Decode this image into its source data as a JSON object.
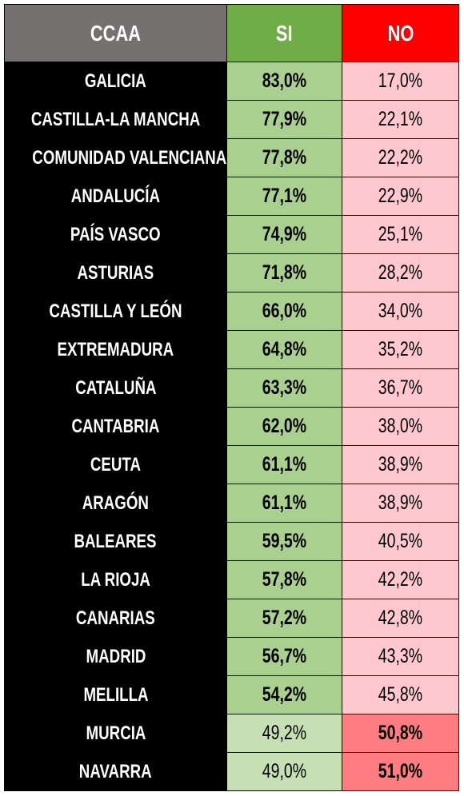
{
  "table": {
    "header": [
      "CCAA",
      "SI",
      "NO"
    ],
    "rows": [
      [
        "GALICIA",
        "83,0%",
        "17,0%"
      ],
      [
        "CASTILLA-LA MANCHA",
        "77,9%",
        "22,1%"
      ],
      [
        "COMUNIDAD VALENCIANA",
        "77,8%",
        "22,2%"
      ],
      [
        "ANDALUCÍA",
        "77,1%",
        "22,9%"
      ],
      [
        "PAÍS VASCO",
        "74,9%",
        "25,1%"
      ],
      [
        "ASTURIAS",
        "71,8%",
        "28,2%"
      ],
      [
        "CASTILLA Y LEÓN",
        "66,0%",
        "34,0%"
      ],
      [
        "EXTREMADURA",
        "64,8%",
        "35,2%"
      ],
      [
        "CATALUÑA",
        "63,3%",
        "36,7%"
      ],
      [
        "CANTABRIA",
        "62,0%",
        "38,0%"
      ],
      [
        "CEUTA",
        "61,1%",
        "38,9%"
      ],
      [
        "ARAGÓN",
        "61,1%",
        "38,9%"
      ],
      [
        "BALEARES",
        "59,5%",
        "40,5%"
      ],
      [
        "LA RIOJA",
        "57,8%",
        "42,2%"
      ],
      [
        "CANARIAS",
        "57,2%",
        "42,8%"
      ],
      [
        "MADRID",
        "56,7%",
        "43,3%"
      ],
      [
        "MELILLA",
        "54,2%",
        "45,8%"
      ],
      [
        "MURCIA",
        "49,2%",
        "50,8%"
      ],
      [
        "NAVARRA",
        "49,0%",
        "51,0%"
      ]
    ]
  }
}
